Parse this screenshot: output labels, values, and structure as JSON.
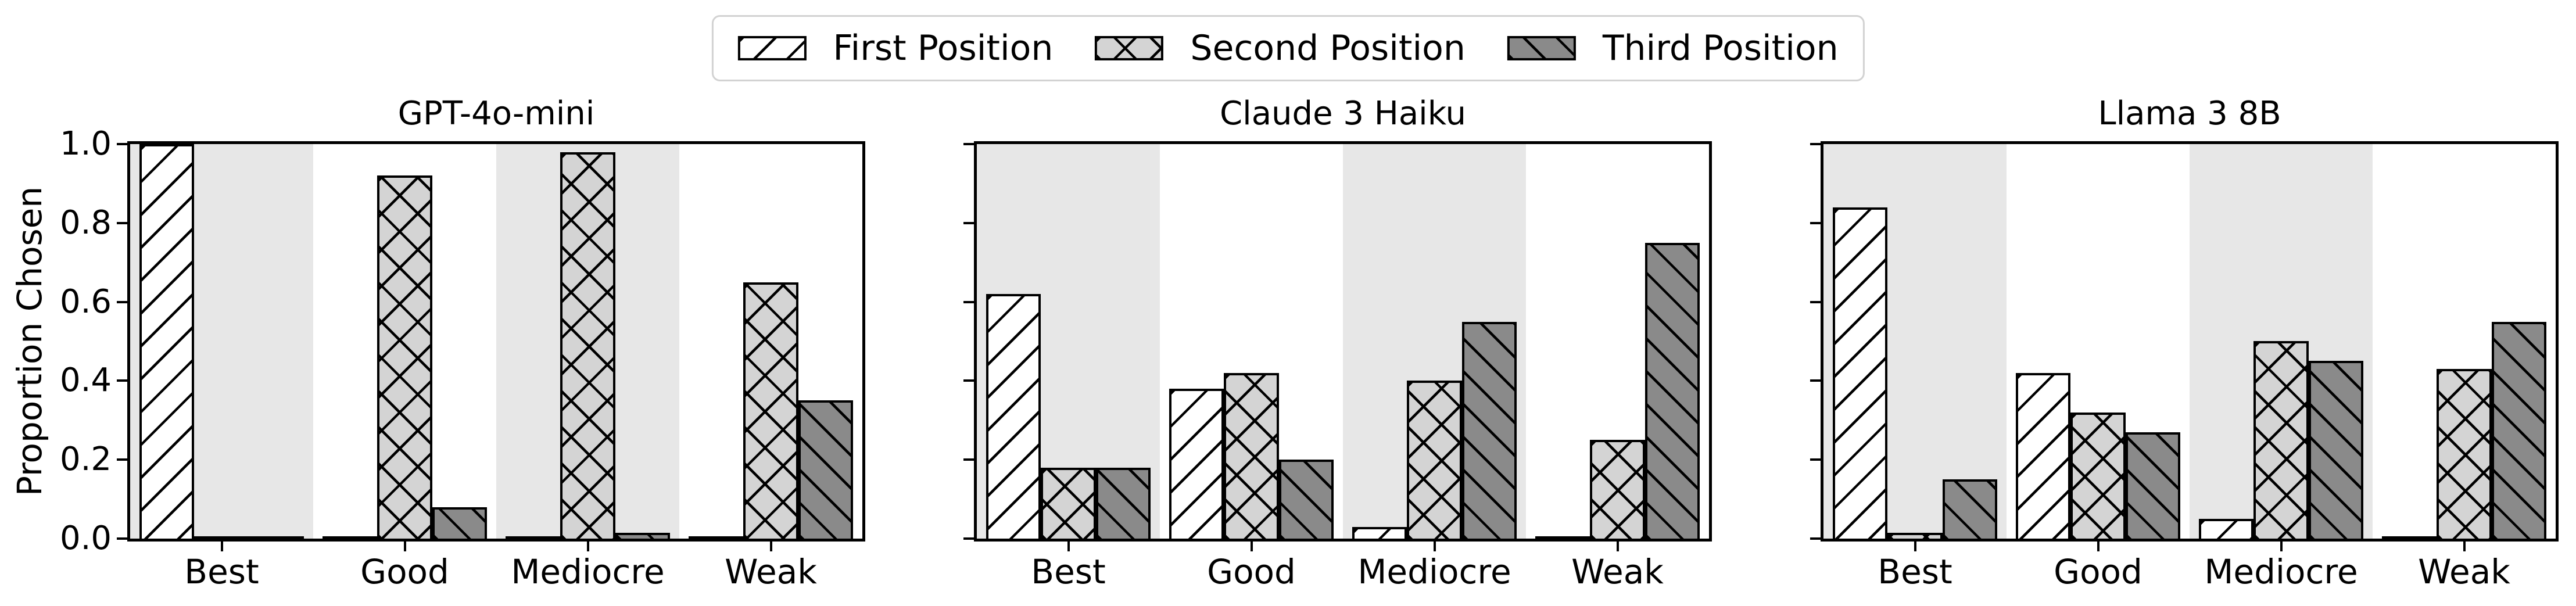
{
  "figure": {
    "ylabel": "Proportion Chosen",
    "y_ticks": [
      "0.0",
      "0.2",
      "0.4",
      "0.6",
      "0.8",
      "1.0"
    ],
    "categories": [
      "Best",
      "Good",
      "Mediocre",
      "Weak"
    ],
    "legend": {
      "items": [
        {
          "label": "First Position",
          "hatch": "/",
          "fill": "#ffffff"
        },
        {
          "label": "Second Position",
          "hatch": "x",
          "fill": "#d4d4d4"
        },
        {
          "label": "Third Position",
          "hatch": "\\",
          "fill": "#8a8a8a"
        }
      ]
    },
    "colors": {
      "bar_edge": "#000000",
      "shaded_band": "#e7e7e7",
      "legend_border": "#d2d2d2",
      "background": "#ffffff"
    }
  },
  "chart_data": [
    {
      "type": "bar",
      "title": "GPT-4o-mini",
      "categories": [
        "Best",
        "Good",
        "Mediocre",
        "Weak"
      ],
      "series": [
        {
          "name": "First Position",
          "values": [
            1.0,
            0.0,
            0.0,
            0.0
          ]
        },
        {
          "name": "Second Position",
          "values": [
            0.0,
            0.92,
            0.98,
            0.65
          ]
        },
        {
          "name": "Third Position",
          "values": [
            0.0,
            0.08,
            0.015,
            0.35
          ]
        }
      ],
      "ylabel": "Proportion Chosen",
      "ylim": [
        0,
        1.0
      ],
      "yticks": [
        0.0,
        0.2,
        0.4,
        0.6,
        0.8,
        1.0
      ],
      "grid": false,
      "shaded_categories": [
        "Best",
        "Mediocre"
      ],
      "legend_position": "figure-top-center"
    },
    {
      "type": "bar",
      "title": "Claude 3 Haiku",
      "categories": [
        "Best",
        "Good",
        "Mediocre",
        "Weak"
      ],
      "series": [
        {
          "name": "First Position",
          "values": [
            0.62,
            0.38,
            0.03,
            0.005
          ]
        },
        {
          "name": "Second Position",
          "values": [
            0.18,
            0.42,
            0.4,
            0.25
          ]
        },
        {
          "name": "Third Position",
          "values": [
            0.18,
            0.2,
            0.55,
            0.75
          ]
        }
      ],
      "ylabel": "",
      "ylim": [
        0,
        1.0
      ],
      "yticks": [
        0.0,
        0.2,
        0.4,
        0.6,
        0.8,
        1.0
      ],
      "grid": false,
      "shaded_categories": [
        "Best",
        "Mediocre"
      ],
      "legend_position": "figure-top-center"
    },
    {
      "type": "bar",
      "title": "Llama 3 8B",
      "categories": [
        "Best",
        "Good",
        "Mediocre",
        "Weak"
      ],
      "series": [
        {
          "name": "First Position",
          "values": [
            0.84,
            0.42,
            0.05,
            0.005
          ]
        },
        {
          "name": "Second Position",
          "values": [
            0.015,
            0.32,
            0.5,
            0.43
          ]
        },
        {
          "name": "Third Position",
          "values": [
            0.15,
            0.27,
            0.45,
            0.55
          ]
        }
      ],
      "ylabel": "",
      "ylim": [
        0,
        1.0
      ],
      "yticks": [
        0.0,
        0.2,
        0.4,
        0.6,
        0.8,
        1.0
      ],
      "grid": false,
      "shaded_categories": [
        "Best",
        "Mediocre"
      ],
      "legend_position": "figure-top-center"
    }
  ]
}
